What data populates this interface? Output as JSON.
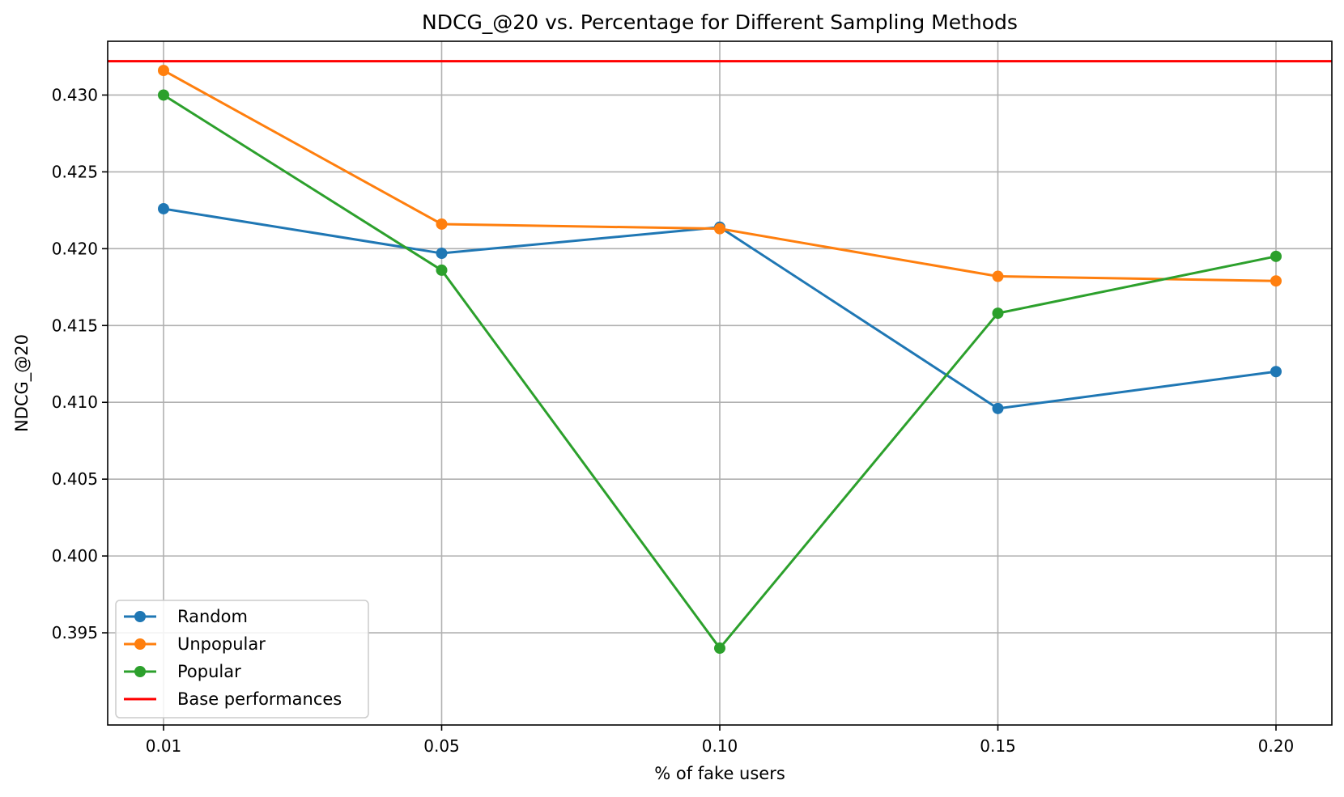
{
  "chart_data": {
    "type": "line",
    "title": "NDCG_@20 vs. Percentage for Different Sampling Methods",
    "xlabel": "% of fake users",
    "ylabel": "NDCG_@20",
    "categories": [
      "0.01",
      "0.05",
      "0.10",
      "0.15",
      "0.20"
    ],
    "ylim": [
      0.389,
      0.4335
    ],
    "yticks": [
      "0.395",
      "0.400",
      "0.405",
      "0.410",
      "0.415",
      "0.420",
      "0.425",
      "0.430"
    ],
    "grid": true,
    "legend_position": "lower-left",
    "series": [
      {
        "name": "Random",
        "color": "#1f77b4",
        "values": [
          0.4226,
          0.4197,
          0.4214,
          0.4096,
          0.412
        ]
      },
      {
        "name": "Unpopular",
        "color": "#ff7f0e",
        "values": [
          0.4316,
          0.4216,
          0.4213,
          0.4182,
          0.4179
        ]
      },
      {
        "name": "Popular",
        "color": "#2ca02c",
        "values": [
          0.43,
          0.4186,
          0.394,
          0.4158,
          0.4195
        ]
      }
    ],
    "reference_line": {
      "name": "Base performances",
      "color": "#ff0000",
      "value": 0.4322
    }
  }
}
